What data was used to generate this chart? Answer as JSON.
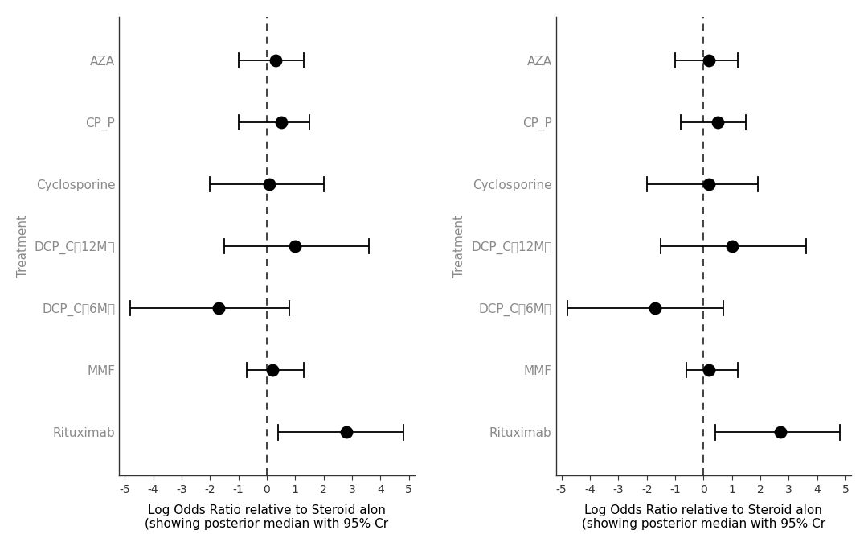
{
  "treatments": [
    "AZA",
    "CP_P",
    "Cyclosporine",
    "DCP_C（12M）",
    "DCP_C（6M）",
    "MMF",
    "Rituximab"
  ],
  "panel1": {
    "medians": [
      0.3,
      0.5,
      0.1,
      1.0,
      -1.7,
      0.2,
      2.8
    ],
    "lower": [
      -1.0,
      -1.0,
      -2.0,
      -1.5,
      -4.8,
      -0.7,
      0.4
    ],
    "upper": [
      1.3,
      1.5,
      2.0,
      3.6,
      0.8,
      1.3,
      4.8
    ]
  },
  "panel2": {
    "medians": [
      0.2,
      0.5,
      0.2,
      1.0,
      -1.7,
      0.2,
      2.7
    ],
    "lower": [
      -1.0,
      -0.8,
      -2.0,
      -1.5,
      -4.8,
      -0.6,
      0.4
    ],
    "upper": [
      1.2,
      1.5,
      1.9,
      3.6,
      0.7,
      1.2,
      4.8
    ]
  },
  "xlim": [
    -5.2,
    5.2
  ],
  "xticks": [
    -5,
    -4,
    -3,
    -2,
    -1,
    0,
    1,
    2,
    3,
    4,
    5
  ],
  "xlabel_line1": "Log Odds Ratio relative to Steroid alon",
  "xlabel_line2": "(showing posterior median with 95% Cr",
  "ylabel": "Treatment",
  "dot_color": "#000000",
  "dot_size": 130,
  "line_color": "#000000",
  "line_width": 1.3,
  "label_color": "#8a8a8a",
  "axis_color": "#333333",
  "dashed_line_color": "#333333",
  "bg_color": "#ffffff",
  "xlabel_fontsize": 11,
  "ylabel_fontsize": 11,
  "tick_fontsize": 10,
  "label_fontsize": 11
}
